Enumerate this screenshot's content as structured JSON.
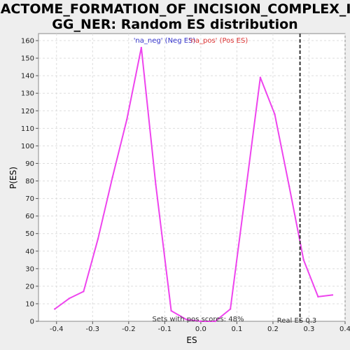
{
  "chart_data": {
    "type": "line",
    "title": [
      "REACTOME_FORMATION_OF_INCISION_COMPLEX_IN_",
      "GG_NER: Random ES distribution"
    ],
    "xlabel": "ES",
    "ylabel": "P(ES)",
    "xlim": [
      -0.45,
      0.4
    ],
    "ylim": [
      0,
      164
    ],
    "xticks": [
      -0.4,
      -0.3,
      -0.2,
      -0.1,
      0.0,
      0.1,
      0.2,
      0.3,
      0.4
    ],
    "xtick_labels": [
      "-0.4",
      "-0.3",
      "-0.2",
      "-0.1",
      "0.0",
      "0.1",
      "0.2",
      "0.3",
      "0.4"
    ],
    "yticks": [
      0,
      10,
      20,
      30,
      40,
      50,
      60,
      70,
      80,
      90,
      100,
      110,
      120,
      130,
      140,
      150,
      160
    ],
    "grid": true,
    "series": [
      {
        "color": "#ee44ee",
        "x": [
          -0.405,
          -0.365,
          -0.325,
          -0.285,
          -0.245,
          -0.205,
          -0.165,
          -0.125,
          -0.082,
          -0.04,
          0.0,
          0.04,
          0.082,
          0.125,
          0.165,
          0.205,
          0.245,
          0.285,
          0.325,
          0.365
        ],
        "y": [
          7,
          13,
          17,
          47,
          82,
          115,
          156,
          78,
          6,
          1,
          0,
          0,
          7,
          75,
          139,
          118,
          77,
          35,
          14,
          15
        ]
      }
    ],
    "legend": {
      "placement": "top-center",
      "neg_label": "'na_neg' (Neg ES)",
      "pos_label": "'na_pos' (Pos ES)",
      "neg_color": "#3333cc",
      "pos_color": "#dd3333"
    },
    "real_es": {
      "x": 0.275,
      "label": "Real ES 0.3"
    },
    "annotation": "Sets with pos scores: 48%"
  }
}
